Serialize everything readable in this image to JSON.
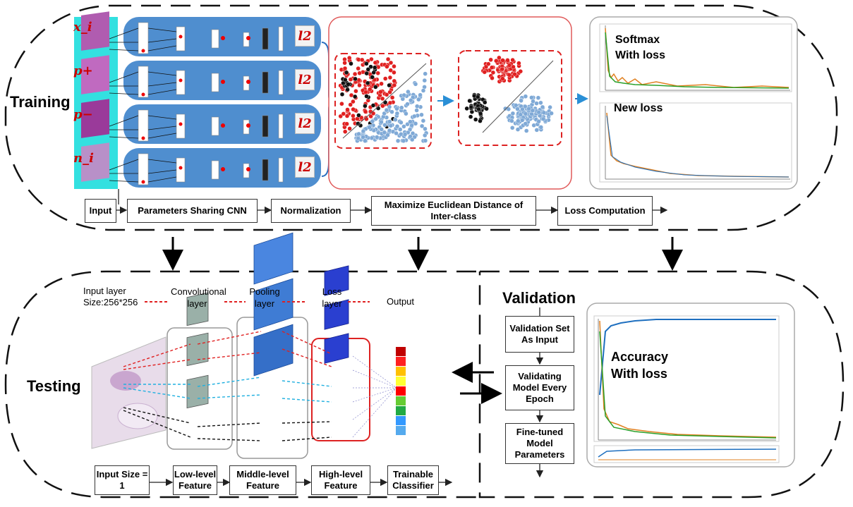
{
  "training": {
    "title": "Training",
    "inputs": [
      "x_i",
      "p+",
      "p−",
      "n_i"
    ],
    "l2_label": "l2",
    "pipeline": [
      "Input",
      "Parameters Sharing CNN",
      "Normalization",
      "Maximize Euclidean Distance of Inter-class",
      "Loss Computation"
    ],
    "plot_top_label": "Softmax With loss",
    "plot_bottom_label": "New  loss"
  },
  "testing": {
    "title": "Testing",
    "layer_labels": [
      "Input layer Size:256*256",
      "Convolutional layer",
      "Pooling layer",
      "Loss layer",
      "Output"
    ],
    "pipeline": [
      "Input Size = 1",
      "Low-level Feature",
      "Middle-level Feature",
      "High-level Feature",
      "Trainable Classifier"
    ],
    "output_colors": [
      "#c00000",
      "#ff2020",
      "#ffc000",
      "#ffff33",
      "#ff0000",
      "#66cc33",
      "#22aa44",
      "#3399ff",
      "#55aaee"
    ]
  },
  "validation": {
    "title": "Validation",
    "steps": [
      "Validation Set As Input",
      "Validating Model Every Epoch",
      "Fine-tuned Model Parameters"
    ],
    "plot_label": "Accuracy With loss"
  }
}
